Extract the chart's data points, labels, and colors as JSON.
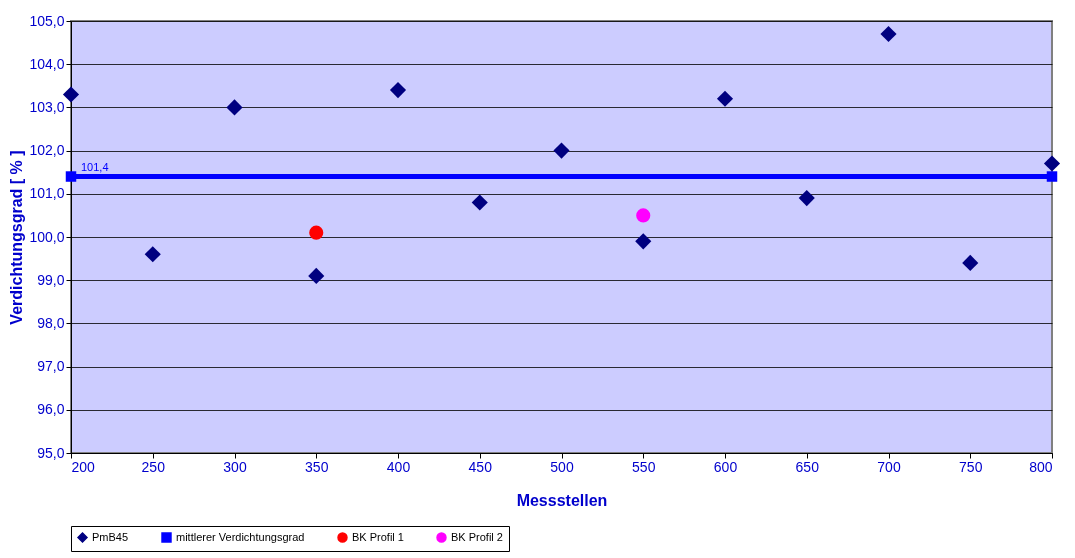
{
  "chart_data": {
    "type": "scatter",
    "xlabel": "Messstellen",
    "ylabel": "Verdichtungsgrad [ % ]",
    "xlim": [
      200,
      800
    ],
    "xticks": [
      200,
      250,
      300,
      350,
      400,
      450,
      500,
      550,
      600,
      650,
      700,
      750,
      800
    ],
    "ylim": [
      95,
      105
    ],
    "yticks": [
      {
        "value": 95,
        "label": "95,0"
      },
      {
        "value": 96,
        "label": "96,0"
      },
      {
        "value": 97,
        "label": "97,0"
      },
      {
        "value": 98,
        "label": "98,0"
      },
      {
        "value": 99,
        "label": "99,0"
      },
      {
        "value": 100,
        "label": "100,0"
      },
      {
        "value": 101,
        "label": "101,0"
      },
      {
        "value": 102,
        "label": "102,0"
      },
      {
        "value": 103,
        "label": "103,0"
      },
      {
        "value": 104,
        "label": "104,0"
      },
      {
        "value": 105,
        "label": "105,0"
      }
    ],
    "grid": "y",
    "legend": "bottom",
    "series": [
      {
        "name": "PmB45",
        "marker": "diamond",
        "color": "#000080",
        "x": [
          200,
          250,
          300,
          350,
          400,
          450,
          500,
          550,
          600,
          650,
          700,
          750,
          800
        ],
        "values": [
          103.3,
          99.6,
          103.0,
          99.1,
          103.4,
          100.8,
          102.0,
          99.9,
          103.2,
          100.9,
          104.7,
          99.4,
          101.7
        ]
      },
      {
        "name": "mittlerer Verdichtungsgrad",
        "type": "line",
        "marker": "square",
        "color": "#0000ff",
        "x": [
          200,
          800
        ],
        "values": [
          101.4,
          101.4
        ],
        "value_labels": [
          "101,4",
          null
        ]
      },
      {
        "name": "BK Profil 1",
        "marker": "circle",
        "color": "#ff0000",
        "x": [
          350
        ],
        "values": [
          100.1
        ]
      },
      {
        "name": "BK Profil 2",
        "marker": "circle",
        "color": "#ff00ff",
        "x": [
          550
        ],
        "values": [
          100.5
        ]
      }
    ]
  }
}
